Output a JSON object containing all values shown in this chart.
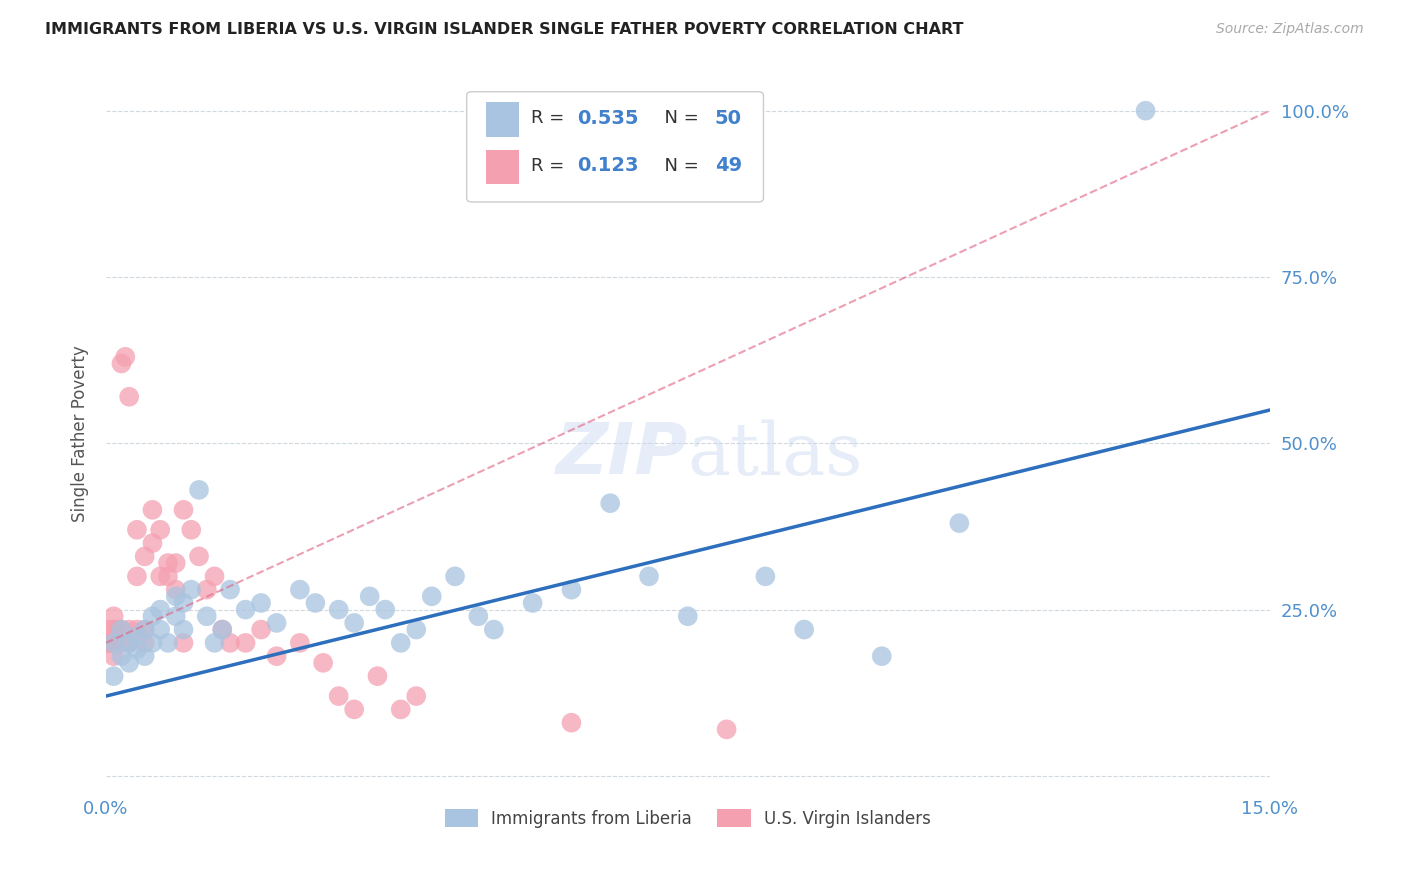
{
  "title": "IMMIGRANTS FROM LIBERIA VS U.S. VIRGIN ISLANDER SINGLE FATHER POVERTY CORRELATION CHART",
  "source": "Source: ZipAtlas.com",
  "ylabel": "Single Father Poverty",
  "xlim": [
    0.0,
    0.15
  ],
  "ylim": [
    -0.02,
    1.05
  ],
  "yticks": [
    0.0,
    0.25,
    0.5,
    0.75,
    1.0
  ],
  "ytick_labels": [
    "",
    "25.0%",
    "50.0%",
    "75.0%",
    "100.0%"
  ],
  "xticks": [
    0.0,
    0.05,
    0.1,
    0.15
  ],
  "xtick_labels": [
    "0.0%",
    "",
    "",
    "15.0%"
  ],
  "blue_R": 0.535,
  "blue_N": 50,
  "pink_R": 0.123,
  "pink_N": 49,
  "blue_color": "#a8c4e0",
  "pink_color": "#f4a0b0",
  "blue_line_color": "#2e6fbd",
  "pink_line_color": "#e06080",
  "grid_color": "#d0d8e0",
  "background_color": "#ffffff",
  "blue_x": [
    0.001,
    0.001,
    0.002,
    0.002,
    0.003,
    0.003,
    0.004,
    0.004,
    0.005,
    0.005,
    0.006,
    0.006,
    0.007,
    0.007,
    0.008,
    0.009,
    0.009,
    0.01,
    0.01,
    0.011,
    0.012,
    0.013,
    0.014,
    0.015,
    0.016,
    0.018,
    0.02,
    0.022,
    0.025,
    0.027,
    0.03,
    0.032,
    0.034,
    0.036,
    0.038,
    0.04,
    0.042,
    0.045,
    0.048,
    0.05,
    0.055,
    0.06,
    0.065,
    0.07,
    0.075,
    0.085,
    0.09,
    0.1,
    0.11,
    0.134
  ],
  "blue_y": [
    0.15,
    0.2,
    0.18,
    0.22,
    0.17,
    0.2,
    0.19,
    0.21,
    0.18,
    0.22,
    0.2,
    0.24,
    0.22,
    0.25,
    0.2,
    0.24,
    0.27,
    0.22,
    0.26,
    0.28,
    0.43,
    0.24,
    0.2,
    0.22,
    0.28,
    0.25,
    0.26,
    0.23,
    0.28,
    0.26,
    0.25,
    0.23,
    0.27,
    0.25,
    0.2,
    0.22,
    0.27,
    0.3,
    0.24,
    0.22,
    0.26,
    0.28,
    0.41,
    0.3,
    0.24,
    0.3,
    0.22,
    0.18,
    0.38,
    1.0
  ],
  "pink_x": [
    0.0003,
    0.0005,
    0.0005,
    0.001,
    0.001,
    0.001,
    0.001,
    0.0015,
    0.002,
    0.002,
    0.002,
    0.0025,
    0.003,
    0.003,
    0.003,
    0.004,
    0.004,
    0.004,
    0.005,
    0.005,
    0.005,
    0.006,
    0.006,
    0.007,
    0.007,
    0.008,
    0.008,
    0.009,
    0.009,
    0.01,
    0.01,
    0.011,
    0.012,
    0.013,
    0.014,
    0.015,
    0.016,
    0.018,
    0.02,
    0.022,
    0.025,
    0.028,
    0.03,
    0.032,
    0.035,
    0.038,
    0.04,
    0.06,
    0.08
  ],
  "pink_y": [
    0.2,
    0.2,
    0.22,
    0.18,
    0.2,
    0.22,
    0.24,
    0.22,
    0.2,
    0.22,
    0.62,
    0.63,
    0.2,
    0.22,
    0.57,
    0.22,
    0.3,
    0.37,
    0.2,
    0.22,
    0.33,
    0.35,
    0.4,
    0.3,
    0.37,
    0.3,
    0.32,
    0.28,
    0.32,
    0.2,
    0.4,
    0.37,
    0.33,
    0.28,
    0.3,
    0.22,
    0.2,
    0.2,
    0.22,
    0.18,
    0.2,
    0.17,
    0.12,
    0.1,
    0.15,
    0.1,
    0.12,
    0.08,
    0.07
  ],
  "blue_line_x0": 0.0,
  "blue_line_y0": 0.12,
  "blue_line_x1": 0.15,
  "blue_line_y1": 0.55,
  "pink_line_x0": 0.0,
  "pink_line_y0": 0.2,
  "pink_line_x1": 0.15,
  "pink_line_y1": 1.0,
  "legend_label_blue": "Immigrants from Liberia",
  "legend_label_pink": "U.S. Virgin Islanders"
}
